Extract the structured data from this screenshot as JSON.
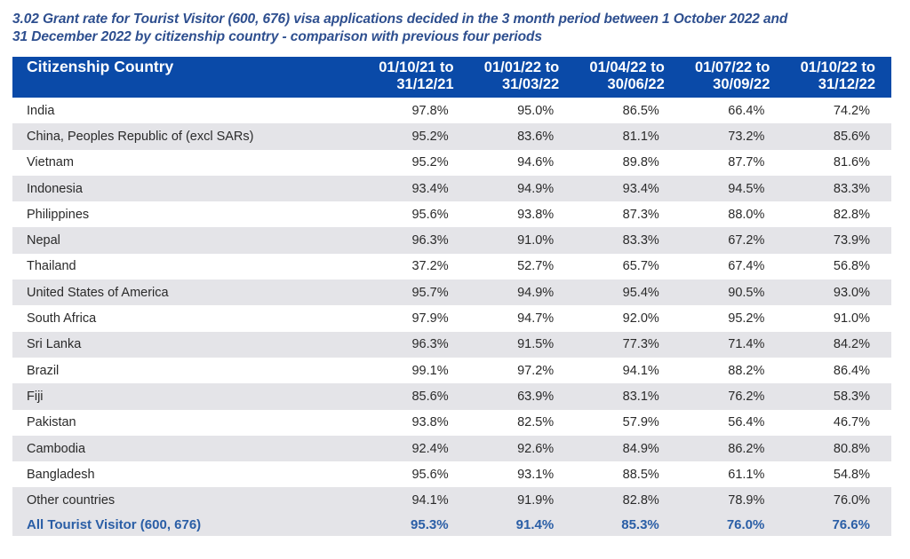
{
  "caption": {
    "line1": "3.02 Grant rate for Tourist Visitor (600, 676) visa applications decided in the 3 month period between 1 October 2022 and",
    "line2": "31 December 2022 by citizenship country - comparison with previous four periods"
  },
  "colors": {
    "header_bg": "#0a4aa8",
    "header_text": "#ffffff",
    "caption_text": "#2e4f8f",
    "stripe": "#e4e4e8",
    "total_text": "#2a5ea6"
  },
  "table": {
    "country_header": "Citizenship Country",
    "periods": [
      {
        "line1": "01/10/21 to",
        "line2": "31/12/21"
      },
      {
        "line1": "01/01/22 to",
        "line2": "31/03/22"
      },
      {
        "line1": "01/04/22 to",
        "line2": "30/06/22"
      },
      {
        "line1": "01/07/22 to",
        "line2": "30/09/22"
      },
      {
        "line1": "01/10/22 to",
        "line2": "31/12/22"
      }
    ],
    "rows": [
      {
        "country": "India",
        "values": [
          "97.8%",
          "95.0%",
          "86.5%",
          "66.4%",
          "74.2%"
        ]
      },
      {
        "country": "China, Peoples Republic of (excl SARs)",
        "values": [
          "95.2%",
          "83.6%",
          "81.1%",
          "73.2%",
          "85.6%"
        ]
      },
      {
        "country": "Vietnam",
        "values": [
          "95.2%",
          "94.6%",
          "89.8%",
          "87.7%",
          "81.6%"
        ]
      },
      {
        "country": "Indonesia",
        "values": [
          "93.4%",
          "94.9%",
          "93.4%",
          "94.5%",
          "83.3%"
        ]
      },
      {
        "country": "Philippines",
        "values": [
          "95.6%",
          "93.8%",
          "87.3%",
          "88.0%",
          "82.8%"
        ]
      },
      {
        "country": "Nepal",
        "values": [
          "96.3%",
          "91.0%",
          "83.3%",
          "67.2%",
          "73.9%"
        ]
      },
      {
        "country": "Thailand",
        "values": [
          "37.2%",
          "52.7%",
          "65.7%",
          "67.4%",
          "56.8%"
        ]
      },
      {
        "country": "United States of America",
        "values": [
          "95.7%",
          "94.9%",
          "95.4%",
          "90.5%",
          "93.0%"
        ]
      },
      {
        "country": "South Africa",
        "values": [
          "97.9%",
          "94.7%",
          "92.0%",
          "95.2%",
          "91.0%"
        ]
      },
      {
        "country": "Sri Lanka",
        "values": [
          "96.3%",
          "91.5%",
          "77.3%",
          "71.4%",
          "84.2%"
        ]
      },
      {
        "country": "Brazil",
        "values": [
          "99.1%",
          "97.2%",
          "94.1%",
          "88.2%",
          "86.4%"
        ]
      },
      {
        "country": "Fiji",
        "values": [
          "85.6%",
          "63.9%",
          "83.1%",
          "76.2%",
          "58.3%"
        ]
      },
      {
        "country": "Pakistan",
        "values": [
          "93.8%",
          "82.5%",
          "57.9%",
          "56.4%",
          "46.7%"
        ]
      },
      {
        "country": "Cambodia",
        "values": [
          "92.4%",
          "92.6%",
          "84.9%",
          "86.2%",
          "80.8%"
        ]
      },
      {
        "country": "Bangladesh",
        "values": [
          "95.6%",
          "93.1%",
          "88.5%",
          "61.1%",
          "54.8%"
        ]
      },
      {
        "country": "Other countries",
        "values": [
          "94.1%",
          "91.9%",
          "82.8%",
          "78.9%",
          "76.0%"
        ]
      }
    ],
    "total": {
      "country": "All Tourist Visitor (600, 676)",
      "values": [
        "95.3%",
        "91.4%",
        "85.3%",
        "76.0%",
        "76.6%"
      ]
    }
  }
}
